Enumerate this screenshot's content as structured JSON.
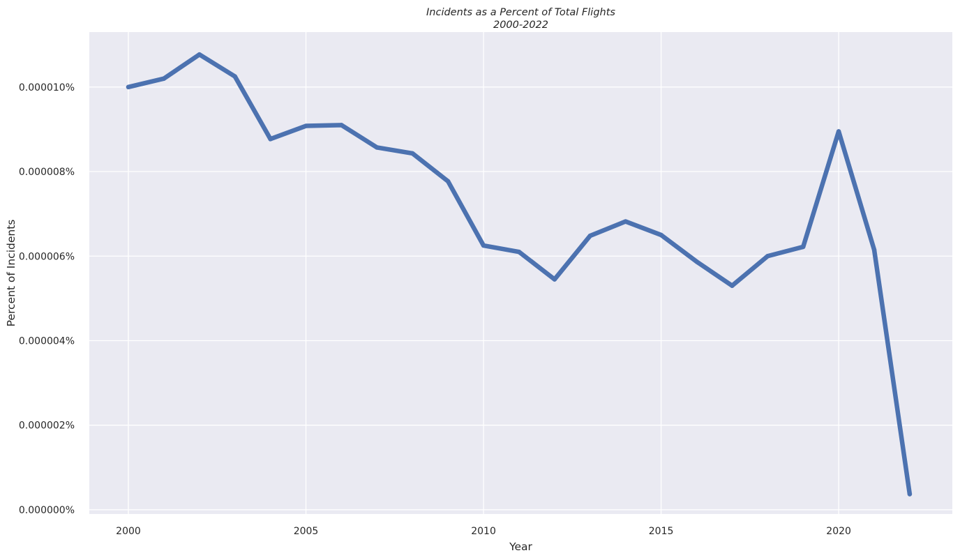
{
  "chart_data": {
    "type": "line",
    "title": "Incidents as a Percent of Total Flights",
    "subtitle": "2000-2022",
    "xlabel": "Year",
    "ylabel": "Percent of Incidents",
    "xlim": [
      1998.9,
      2023.2
    ],
    "ylim": [
      -1e-07,
      1.13e-05
    ],
    "x_ticks": [
      2000,
      2005,
      2010,
      2015,
      2020
    ],
    "x_tick_labels": [
      "2000",
      "2005",
      "2010",
      "2015",
      "2020"
    ],
    "y_ticks": [
      0,
      2e-06,
      4e-06,
      6e-06,
      8e-06,
      1e-05
    ],
    "y_tick_labels": [
      "0.000000%",
      "0.000002%",
      "0.000004%",
      "0.000006%",
      "0.000008%",
      "0.000010%"
    ],
    "grid": true,
    "legend": "none",
    "series": [
      {
        "color": "#4c72b0",
        "x": [
          2000,
          2001,
          2002,
          2003,
          2004,
          2005,
          2006,
          2007,
          2008,
          2009,
          2010,
          2011,
          2012,
          2013,
          2014,
          2015,
          2016,
          2017,
          2018,
          2019,
          2020,
          2021,
          2022
        ],
        "y": [
          1e-05,
          1.02e-05,
          1.077e-05,
          1.025e-05,
          8.77e-06,
          9.08e-06,
          9.1e-06,
          8.57e-06,
          8.43e-06,
          7.77e-06,
          6.25e-06,
          6.1e-06,
          5.45e-06,
          6.48e-06,
          6.82e-06,
          6.5e-06,
          5.87e-06,
          5.3e-06,
          6e-06,
          6.22e-06,
          8.95e-06,
          6.15e-06,
          3.7e-07
        ]
      }
    ],
    "colors": {
      "plot_background": "#eaeaf2",
      "grid": "#ffffff",
      "line": "#4c72b0",
      "text": "#262626"
    }
  }
}
